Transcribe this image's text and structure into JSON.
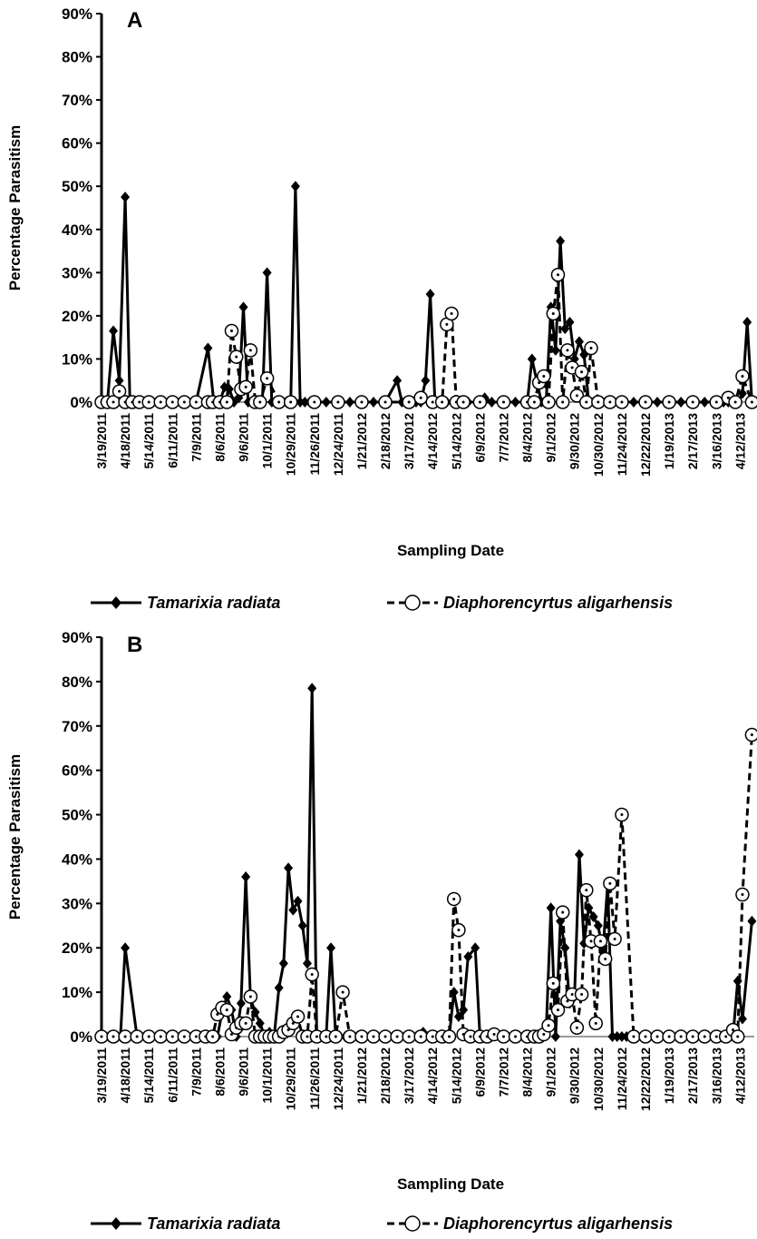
{
  "chart_data": [
    {
      "type": "line",
      "panel_label": "A",
      "xlabel": "Sampling Date",
      "ylabel": "Percentage Parasitism",
      "ylim": [
        0,
        90
      ],
      "y_ticks": [
        "0%",
        "10%",
        "20%",
        "30%",
        "40%",
        "50%",
        "60%",
        "70%",
        "80%",
        "90%"
      ],
      "x_tick_labels": [
        "3/19/2011",
        "4/18/2011",
        "5/14/2011",
        "6/11/2011",
        "7/9/2011",
        "8/6/2011",
        "9/6/2011",
        "10/1/2011",
        "10/29/2011",
        "11/26/2011",
        "12/24/2011",
        "1/21/2012",
        "2/18/2012",
        "3/17/2012",
        "4/14/2012",
        "5/14/2012",
        "6/9/2012",
        "7/7/2012",
        "8/4/2012",
        "9/1/2012",
        "9/30/2012",
        "10/30/2012",
        "11/24/2012",
        "12/22/2012",
        "1/19/2013",
        "2/17/2013",
        "3/16/2013",
        "4/12/2013"
      ],
      "x_range": [
        0,
        27.6
      ],
      "legend_position": "bottom",
      "series": [
        {
          "name": "Tamarixia radiata",
          "style": "solid",
          "marker": "diamond",
          "x": [
            0,
            0.25,
            0.5,
            0.75,
            1.0,
            1.2,
            1.4,
            1.6,
            1.8,
            2.0,
            2.5,
            3.0,
            3.5,
            4.0,
            4.5,
            4.75,
            5.0,
            5.2,
            5.4,
            5.6,
            5.8,
            6.0,
            6.2,
            6.4,
            6.6,
            6.8,
            7.0,
            7.2,
            7.4,
            7.6,
            7.8,
            8.0,
            8.2,
            8.4,
            8.6,
            8.8,
            9.0,
            9.5,
            10,
            10.5,
            11,
            11.5,
            12,
            12.5,
            12.7,
            12.9,
            13.1,
            13.3,
            13.5,
            13.7,
            13.9,
            14.1,
            14.3,
            14.6,
            15,
            15.5,
            16,
            16.2,
            16.5,
            17,
            17.5,
            18,
            18.2,
            18.4,
            18.6,
            18.8,
            19.0,
            19.2,
            19.4,
            19.6,
            19.8,
            20.0,
            20.2,
            20.4,
            20.6,
            20.8,
            21.0,
            21.2,
            21.4,
            22,
            22.5,
            23,
            23.5,
            24,
            24.5,
            25,
            25.5,
            26,
            26.3,
            26.5,
            26.7,
            26.9,
            27.1,
            27.3,
            27.5
          ],
          "y": [
            0,
            0,
            16.5,
            5,
            47.5,
            0,
            0,
            0,
            0,
            0,
            0,
            0,
            0,
            0,
            12.5,
            0,
            0,
            3.5,
            3,
            0,
            1,
            22,
            0,
            0,
            0,
            0,
            30,
            0,
            0,
            0,
            0,
            0,
            50,
            0,
            0,
            0,
            0,
            0,
            0,
            0,
            0,
            0,
            0,
            5,
            0,
            0,
            0,
            0,
            0,
            5,
            25,
            0,
            0,
            0,
            0,
            0,
            0,
            1,
            0,
            0,
            0,
            0,
            10,
            5,
            0,
            0,
            22,
            12,
            37.3,
            17,
            18.5,
            10,
            14,
            11,
            0,
            0,
            0,
            0,
            0,
            0,
            0,
            0,
            0,
            0,
            0,
            0,
            0,
            0,
            0,
            0,
            0,
            0,
            2,
            18.5,
            0
          ]
        },
        {
          "name": "Diaphorencyrtus aligarhensis",
          "style": "dashed",
          "marker": "open-circle",
          "x": [
            0,
            0.25,
            0.5,
            0.75,
            1.0,
            1.3,
            1.6,
            2.0,
            2.5,
            3.0,
            3.5,
            4.0,
            4.5,
            4.7,
            5.0,
            5.3,
            5.5,
            5.7,
            5.9,
            6.1,
            6.3,
            6.5,
            6.7,
            7.0,
            7.5,
            8,
            9,
            10,
            11,
            12,
            13,
            13.5,
            14,
            14.4,
            14.6,
            14.8,
            15.0,
            15.3,
            16,
            17,
            18,
            18.3,
            18.5,
            18.7,
            18.9,
            19.1,
            19.3,
            19.5,
            19.7,
            19.9,
            20.1,
            20.3,
            20.5,
            20.7,
            21.0,
            21.5,
            22,
            23,
            24,
            25,
            26,
            26.5,
            26.8,
            27.1,
            27.5
          ],
          "y": [
            0,
            0,
            0,
            2.5,
            0,
            0,
            0,
            0,
            0,
            0,
            0,
            0,
            0,
            0,
            0,
            0,
            16.5,
            10.5,
            3,
            3.5,
            12,
            0,
            0,
            5.5,
            0,
            0,
            0,
            0,
            0,
            0,
            0,
            1,
            0,
            0,
            18,
            20.5,
            0,
            0,
            0,
            0,
            0,
            0,
            4.5,
            6,
            0,
            20.5,
            29.5,
            0,
            12,
            8,
            1.5,
            7,
            0,
            12.5,
            0,
            0,
            0,
            0,
            0,
            0,
            0,
            1,
            0,
            6,
            0
          ]
        }
      ]
    },
    {
      "type": "line",
      "panel_label": "B",
      "xlabel": "Sampling Date",
      "ylabel": "Percentage Parasitism",
      "ylim": [
        0,
        90
      ],
      "y_ticks": [
        "0%",
        "10%",
        "20%",
        "30%",
        "40%",
        "50%",
        "60%",
        "70%",
        "80%",
        "90%"
      ],
      "x_tick_labels": [
        "3/19/2011",
        "4/18/2011",
        "5/14/2011",
        "6/11/2011",
        "7/9/2011",
        "8/6/2011",
        "9/6/2011",
        "10/1/2011",
        "10/29/2011",
        "11/26/2011",
        "12/24/2011",
        "1/21/2012",
        "2/18/2012",
        "3/17/2012",
        "4/14/2012",
        "5/14/2012",
        "6/9/2012",
        "7/7/2012",
        "8/4/2012",
        "9/1/2012",
        "9/30/2012",
        "10/30/2012",
        "11/24/2012",
        "12/22/2012",
        "1/19/2013",
        "2/17/2013",
        "3/16/2013",
        "4/12/2013"
      ],
      "x_range": [
        0,
        27.6
      ],
      "legend_position": "bottom",
      "series": [
        {
          "name": "Tamarixia radiata",
          "style": "solid",
          "marker": "diamond",
          "x": [
            0,
            0.3,
            0.6,
            0.8,
            1.0,
            1.5,
            2.0,
            2.5,
            3.0,
            3.5,
            4.0,
            4.4,
            4.7,
            4.9,
            5.1,
            5.3,
            5.5,
            5.7,
            5.9,
            6.1,
            6.3,
            6.5,
            6.7,
            6.9,
            7.1,
            7.3,
            7.5,
            7.7,
            7.9,
            8.1,
            8.3,
            8.5,
            8.7,
            8.9,
            9.1,
            9.3,
            9.5,
            9.7,
            9.9,
            10.3,
            10.5,
            10.8,
            11,
            11.5,
            12,
            12.5,
            13,
            13.3,
            13.6,
            14,
            14.4,
            14.7,
            14.9,
            15.1,
            15.3,
            15.5,
            15.8,
            16,
            16.5,
            17,
            17.5,
            18,
            18.2,
            18.4,
            18.6,
            18.8,
            19.0,
            19.2,
            19.4,
            19.6,
            19.8,
            20.0,
            20.2,
            20.4,
            20.6,
            20.8,
            21.0,
            21.2,
            21.4,
            21.6,
            21.8,
            22.0,
            22.2,
            22.5,
            23,
            23.5,
            24,
            24.5,
            25,
            25.5,
            26,
            26.4,
            26.7,
            26.9,
            27.1,
            27.5
          ],
          "y": [
            0,
            0,
            0,
            0,
            20,
            0,
            0,
            0,
            0,
            0,
            0,
            0,
            0,
            0,
            5.5,
            9,
            6,
            0,
            7.5,
            36,
            8.5,
            5.5,
            3,
            0,
            1,
            0,
            11,
            16.5,
            38,
            28.5,
            30.5,
            25,
            16.5,
            78.5,
            0,
            0,
            0,
            20,
            0,
            0,
            0,
            0,
            0,
            0,
            0,
            0,
            0,
            0,
            1,
            0,
            0,
            0,
            10,
            4.5,
            6,
            18,
            20,
            0,
            0,
            0,
            0,
            0,
            0,
            0,
            0,
            1,
            29,
            0,
            26,
            20,
            7.5,
            9,
            41,
            21,
            29,
            27,
            25,
            19,
            34.5,
            0,
            0,
            0,
            0,
            0,
            0,
            0,
            0,
            0,
            0,
            0,
            0,
            0,
            0,
            12.5,
            4,
            26
          ]
        },
        {
          "name": "Diaphorencyrtus aligarhensis",
          "style": "dashed",
          "marker": "open-circle",
          "x": [
            0,
            0.5,
            1.0,
            1.5,
            2,
            2.5,
            3,
            3.5,
            4,
            4.4,
            4.7,
            4.9,
            5.1,
            5.3,
            5.5,
            5.7,
            5.9,
            6.1,
            6.3,
            6.5,
            6.7,
            6.9,
            7.1,
            7.3,
            7.5,
            7.7,
            7.9,
            8.1,
            8.3,
            8.5,
            8.7,
            8.9,
            9.1,
            9.5,
            9.9,
            10.2,
            10.5,
            11,
            11.5,
            12,
            12.5,
            13,
            13.5,
            14,
            14.4,
            14.7,
            14.9,
            15.1,
            15.3,
            15.6,
            16,
            16.3,
            16.6,
            17,
            17.5,
            18,
            18.3,
            18.5,
            18.7,
            18.9,
            19.1,
            19.3,
            19.5,
            19.7,
            19.9,
            20.1,
            20.3,
            20.5,
            20.7,
            20.9,
            21.1,
            21.3,
            21.5,
            21.7,
            22.0,
            22.5,
            23,
            23.5,
            24,
            24.5,
            25,
            25.5,
            26,
            26.4,
            26.7,
            26.9,
            27.1,
            27.5
          ],
          "y": [
            0,
            0,
            0,
            0,
            0,
            0,
            0,
            0,
            0,
            0,
            0,
            5,
            6.5,
            6,
            0.5,
            2,
            3,
            3,
            9,
            0,
            0,
            0,
            0,
            0,
            0,
            1,
            1.5,
            3,
            4.5,
            0,
            0,
            14,
            0,
            0,
            0,
            10,
            0,
            0,
            0,
            0,
            0,
            0,
            0,
            0,
            0,
            0,
            31,
            24,
            0.5,
            0,
            0,
            0,
            0.5,
            0,
            0,
            0,
            0,
            0,
            0.5,
            2.5,
            12,
            6,
            28,
            8,
            9.5,
            2,
            9.5,
            33,
            21.5,
            3,
            21.5,
            17.5,
            34.5,
            22,
            50,
            0,
            0,
            0,
            0,
            0,
            0,
            0,
            0,
            0,
            1.5,
            0,
            32,
            68
          ]
        }
      ]
    }
  ]
}
